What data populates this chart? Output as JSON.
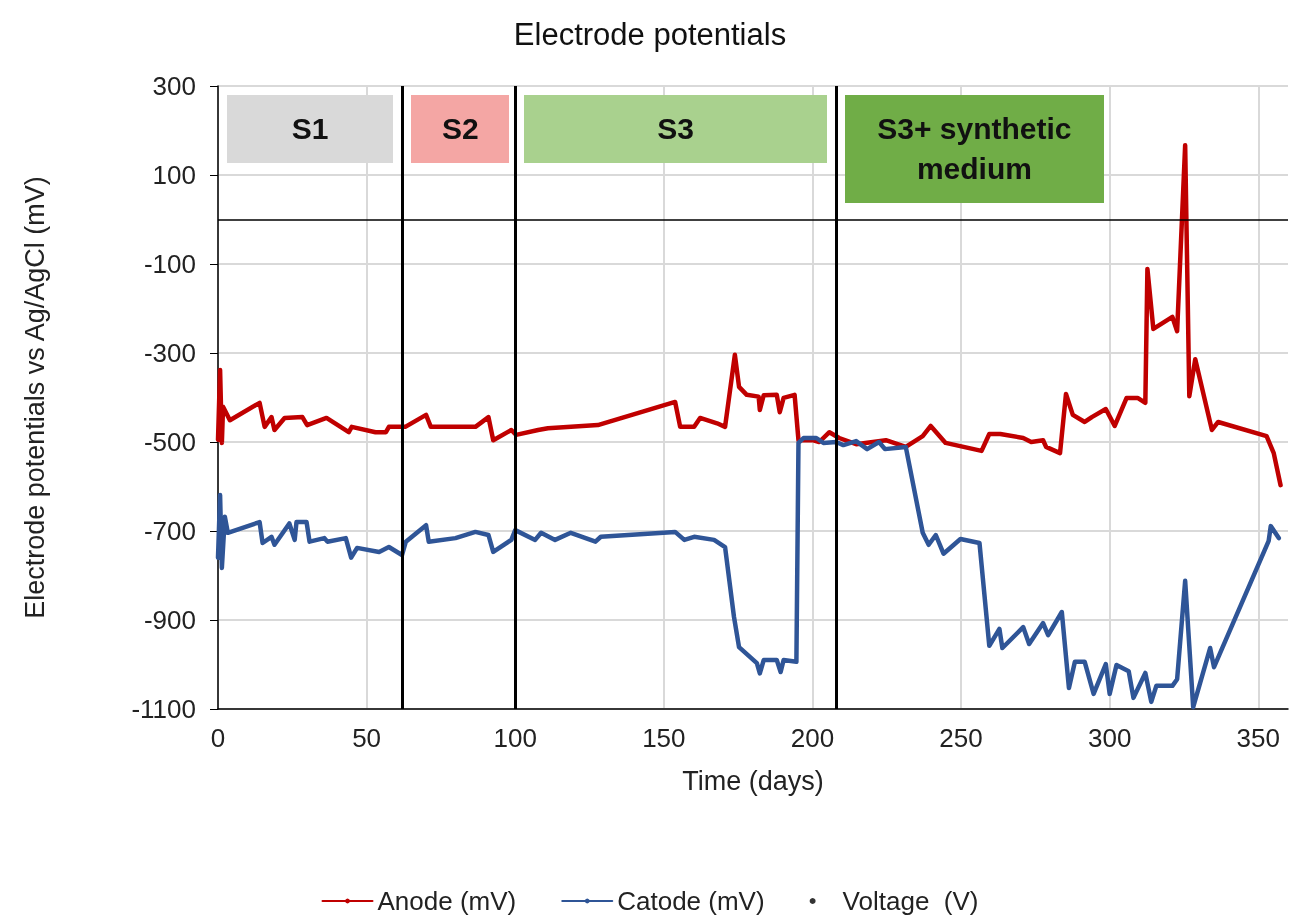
{
  "chart_data": {
    "type": "line",
    "title": "Electrode potentials",
    "xlabel": "Time (days)",
    "ylabel": "Electrode potentials vs Ag/AgCl (mV)",
    "xlim": [
      0,
      360
    ],
    "xticks": [
      0,
      50,
      100,
      150,
      200,
      250,
      300,
      350
    ],
    "ylim": [
      -1100,
      300
    ],
    "yticks": [
      -1100,
      -900,
      -700,
      -500,
      -300,
      -100,
      100,
      300
    ],
    "grid": true,
    "legend": "bottom",
    "marker": "none",
    "line_style": "solid",
    "series": [
      {
        "name": "Anode (mV)",
        "color": "#c00000",
        "x": [
          0,
          0.7,
          1.3,
          1.7,
          4,
          14,
          15.7,
          18,
          19,
          22.4,
          28.4,
          30,
          36.5,
          44,
          45,
          53,
          56.5,
          57.5,
          63,
          70,
          71.6,
          86.6,
          91,
          92.6,
          98.7,
          100.3,
          107.7,
          111,
          127.8,
          153.8,
          155.5,
          160.2,
          162.2,
          167.9,
          170.6,
          173.9,
          175.3,
          177.9,
          181.9,
          182.3,
          183.6,
          188,
          189,
          190.3,
          194,
          195.3,
          200.3,
          202.3,
          205.7,
          209,
          214.7,
          224.7,
          231.4,
          237.1,
          239.8,
          244.8,
          256.9,
          259.5,
          263.2,
          270.9,
          273.6,
          277.6,
          278.6,
          283.3,
          285.3,
          287.6,
          291.6,
          294,
          298.7,
          301.7,
          305.7,
          309.4,
          312,
          312.7,
          314.7,
          321.1,
          322.7,
          325.4,
          326.8,
          328.8,
          334.4,
          336.5,
          352.8,
          355.2,
          357.5
        ],
        "values": [
          -495,
          -338,
          -502,
          -421,
          -451,
          -412,
          -466,
          -444,
          -473,
          -446,
          -444,
          -462,
          -446,
          -478,
          -466,
          -478,
          -478,
          -466,
          -466,
          -439,
          -466,
          -466,
          -444,
          -496,
          -473,
          -484,
          -473,
          -469,
          -462,
          -410,
          -466,
          -466,
          -446,
          -458,
          -466,
          -304,
          -376,
          -394,
          -398,
          -428,
          -395,
          -394,
          -433,
          -401,
          -394,
          -496,
          -496,
          -500,
          -478,
          -491,
          -505,
          -496,
          -511,
          -487,
          -464,
          -502,
          -520,
          -482,
          -482,
          -491,
          -500,
          -496,
          -511,
          -525,
          -392,
          -439,
          -455,
          -444,
          -426,
          -464,
          -401,
          -401,
          -412,
          -111,
          -246,
          -219,
          -251,
          167,
          -397,
          -314,
          -473,
          -455,
          -487,
          -525,
          -597
        ]
      },
      {
        "name": "Catode (mV)",
        "color": "#2f5597",
        "x": [
          0,
          0.7,
          1.3,
          2.3,
          3.3,
          14,
          15,
          18,
          19,
          24,
          25.8,
          26.4,
          29.8,
          30.8,
          35.8,
          36.8,
          43,
          44.8,
          46.8,
          54.2,
          57.5,
          61.9,
          63.2,
          70,
          70.9,
          79.9,
          86.6,
          91,
          92.6,
          98.7,
          100,
          106.7,
          108.7,
          113.4,
          118.7,
          127,
          128.8,
          153.8,
          156.9,
          160.2,
          166.9,
          170.6,
          173.6,
          175.3,
          181.3,
          182.3,
          183.6,
          188,
          189.3,
          190.3,
          194.6,
          195.3,
          197,
          201.3,
          203.7,
          208,
          210.4,
          214.7,
          218.4,
          222.4,
          224.4,
          231.4,
          237.1,
          239.1,
          241.5,
          244.1,
          249.8,
          256.2,
          259.5,
          262.9,
          263.9,
          270.9,
          272.9,
          277.6,
          279.3,
          283.9,
          286.3,
          288.3,
          291.6,
          294.6,
          298.7,
          300,
          302.3,
          306.4,
          308,
          312,
          314,
          315.7,
          321.1,
          322.7,
          325.4,
          328.1,
          333.8,
          335.1,
          353.5,
          354.2,
          356.9
        ],
        "values": [
          -760,
          -619,
          -783,
          -668,
          -704,
          -680,
          -727,
          -713,
          -731,
          -683,
          -720,
          -680,
          -680,
          -724,
          -716,
          -724,
          -716,
          -760,
          -738,
          -747,
          -736,
          -754,
          -724,
          -687,
          -724,
          -716,
          -702,
          -709,
          -747,
          -720,
          -698,
          -720,
          -704,
          -720,
          -704,
          -724,
          -713,
          -702,
          -720,
          -713,
          -720,
          -736,
          -893,
          -961,
          -997,
          -1020,
          -990,
          -990,
          -1017,
          -990,
          -994,
          -502,
          -491,
          -491,
          -502,
          -500,
          -507,
          -498,
          -516,
          -500,
          -516,
          -511,
          -704,
          -731,
          -709,
          -751,
          -718,
          -727,
          -958,
          -920,
          -963,
          -916,
          -954,
          -907,
          -934,
          -882,
          -1053,
          -994,
          -994,
          -1066,
          -999,
          -1066,
          -1001,
          -1015,
          -1075,
          -1019,
          -1084,
          -1048,
          -1048,
          -1033,
          -812,
          -1096,
          -963,
          -1006,
          -722,
          -689,
          -716
        ]
      },
      {
        "name": "Voltage  (V)",
        "type": "scatter",
        "color": "#000000",
        "marker": "circle"
      }
    ],
    "ref_lines": [
      {
        "axis": "y",
        "value": 0,
        "color": "#000000"
      },
      {
        "axis": "x",
        "value": 62,
        "color": "#000000"
      },
      {
        "axis": "x",
        "value": 100,
        "color": "#000000"
      },
      {
        "axis": "x",
        "value": 208,
        "color": "#000000"
      }
    ],
    "bands": [
      {
        "axis": "x",
        "from": 3,
        "to": 59,
        "label": "S1",
        "color": "#d9d9d9"
      },
      {
        "axis": "x",
        "from": 65,
        "to": 98,
        "label": "S2",
        "color": "#f4a6a4"
      },
      {
        "axis": "x",
        "from": 103,
        "to": 205,
        "label": "S3",
        "color": "#a9d18e"
      },
      {
        "axis": "x",
        "from": 211,
        "to": 298,
        "label": "S3+ synthetic medium",
        "color": "#70ad47"
      }
    ]
  }
}
